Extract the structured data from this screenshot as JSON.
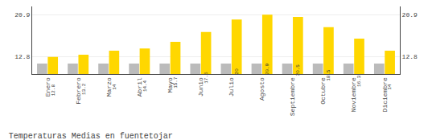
{
  "chart_data": {
    "type": "bar",
    "title": "Temperaturas Medias en fuentetojar",
    "categories": [
      "Enero",
      "Febrero",
      "Marzo",
      "Abril",
      "Mayo",
      "Junio",
      "Julio",
      "Agosto",
      "Septiembre",
      "Octubre",
      "Noviembre",
      "Diciembre"
    ],
    "series": [
      {
        "color": "#BBBBBB",
        "values": [
          11.5,
          11.5,
          11.5,
          11.5,
          11.5,
          11.5,
          11.5,
          11.5,
          11.5,
          11.5,
          11.5,
          11.5
        ]
      },
      {
        "color": "#FFD700",
        "values": [
          12.8,
          13.2,
          14.0,
          14.4,
          15.7,
          17.6,
          20.0,
          20.9,
          20.5,
          18.5,
          16.3,
          14.0
        ],
        "data_labels": true
      }
    ],
    "ylim": [
      9.5,
      22.5
    ],
    "yticks": [
      12.8,
      20.9
    ],
    "y2lim": [
      9.5,
      22.5
    ],
    "y2ticks": [
      12.8,
      20.9
    ],
    "grid": true
  }
}
